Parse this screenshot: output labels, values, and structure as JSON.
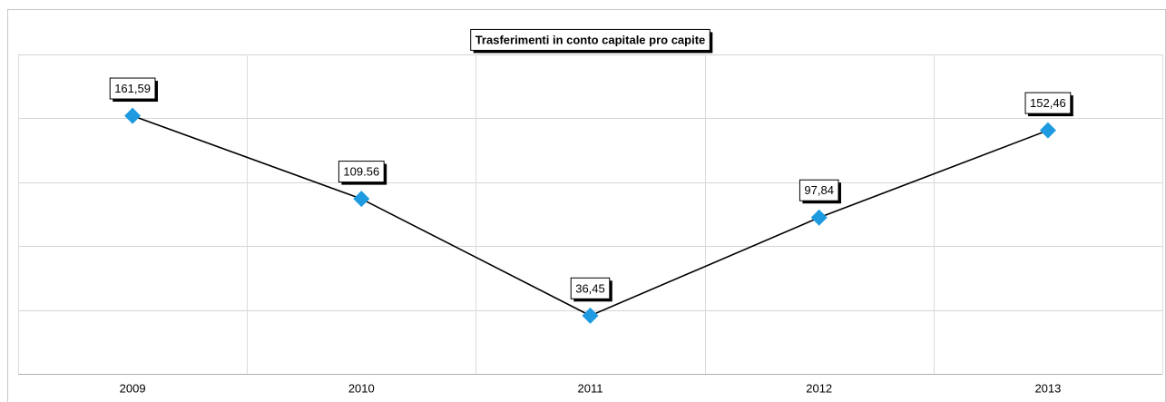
{
  "chart_data": {
    "type": "line",
    "title": "Trasferimenti in conto capitale pro capite",
    "categories": [
      "2009",
      "2010",
      "2011",
      "2012",
      "2013"
    ],
    "series": [
      {
        "name": null,
        "color": "#1e9be0",
        "line_color": "#000000",
        "values": [
          161.59,
          109.56,
          36.45,
          97.84,
          152.46
        ],
        "value_labels": [
          "161,59",
          "109.56",
          "36,45",
          "97,84",
          "152,46"
        ]
      }
    ],
    "ylim": [
      0,
      200
    ],
    "yticks": [
      0,
      40,
      80,
      120,
      160,
      200
    ],
    "grid": true
  }
}
